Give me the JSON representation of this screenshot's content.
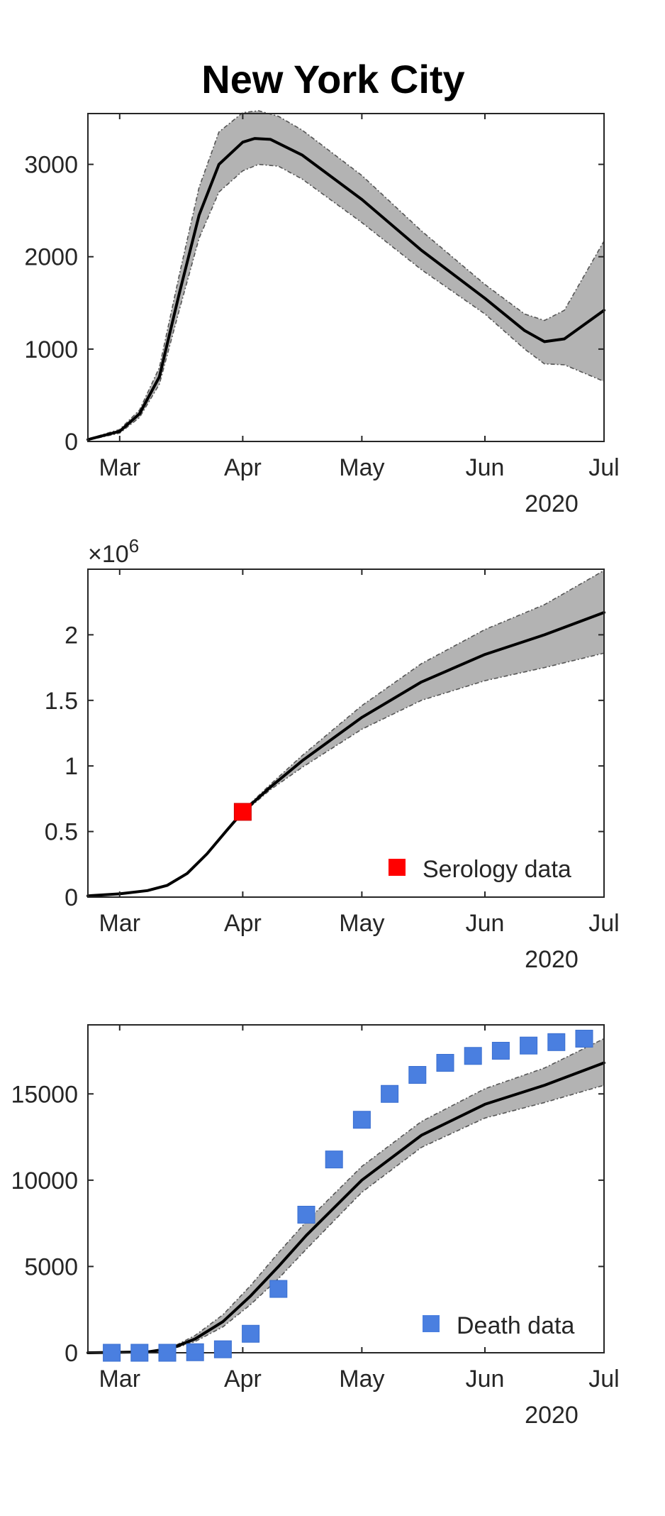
{
  "figure_title": "New York City",
  "colors": {
    "band": "#b3b3b3",
    "line": "#000000",
    "serology_marker": "#ff0000",
    "death_marker": "#4a7fe0",
    "axes": "#262626"
  },
  "chart_data": [
    {
      "type": "line",
      "title": "New York City",
      "x_type": "date",
      "xlim": [
        "2020-02-22",
        "2020-07-01"
      ],
      "ylim": [
        0,
        3550
      ],
      "xticks": [
        "2020-03-01",
        "2020-04-01",
        "2020-05-01",
        "2020-06-01",
        "2020-07-01"
      ],
      "xtick_labels": [
        "Mar",
        "Apr",
        "May",
        "Jun",
        "Jul"
      ],
      "xaxis_year": "2020",
      "yticks": [
        0,
        1000,
        2000,
        3000
      ],
      "ytick_labels": [
        "0",
        "1000",
        "2000",
        "3000"
      ],
      "grid": false,
      "series": [
        {
          "role": "median",
          "x": [
            "2020-02-22",
            "2020-03-01",
            "2020-03-06",
            "2020-03-11",
            "2020-03-16",
            "2020-03-21",
            "2020-03-26",
            "2020-04-01",
            "2020-04-04",
            "2020-04-08",
            "2020-04-16",
            "2020-05-01",
            "2020-05-16",
            "2020-06-01",
            "2020-06-11",
            "2020-06-16",
            "2020-06-21",
            "2020-07-01"
          ],
          "y": [
            20,
            110,
            300,
            700,
            1600,
            2450,
            3000,
            3240,
            3280,
            3270,
            3100,
            2620,
            2070,
            1550,
            1200,
            1080,
            1110,
            1420
          ]
        },
        {
          "role": "band_upper",
          "x": [
            "2020-02-22",
            "2020-03-01",
            "2020-03-06",
            "2020-03-11",
            "2020-03-16",
            "2020-03-21",
            "2020-03-26",
            "2020-04-01",
            "2020-04-05",
            "2020-04-10",
            "2020-04-16",
            "2020-05-01",
            "2020-05-16",
            "2020-06-01",
            "2020-06-11",
            "2020-06-16",
            "2020-06-21",
            "2020-07-01"
          ],
          "y": [
            25,
            130,
            340,
            800,
            1800,
            2750,
            3350,
            3560,
            3580,
            3520,
            3370,
            2880,
            2280,
            1700,
            1380,
            1310,
            1420,
            2170
          ]
        },
        {
          "role": "band_lower",
          "x": [
            "2020-02-22",
            "2020-03-01",
            "2020-03-06",
            "2020-03-11",
            "2020-03-16",
            "2020-03-21",
            "2020-03-26",
            "2020-04-01",
            "2020-04-05",
            "2020-04-10",
            "2020-04-16",
            "2020-05-01",
            "2020-05-16",
            "2020-06-01",
            "2020-06-11",
            "2020-06-16",
            "2020-06-21",
            "2020-07-01"
          ],
          "y": [
            15,
            90,
            260,
            620,
            1420,
            2200,
            2700,
            2930,
            3000,
            2980,
            2840,
            2370,
            1860,
            1380,
            1000,
            840,
            830,
            650
          ]
        }
      ]
    },
    {
      "type": "line",
      "x_type": "date",
      "xlim": [
        "2020-02-22",
        "2020-07-01"
      ],
      "ylim": [
        0,
        2.5
      ],
      "y_multiplier": "×10",
      "y_multiplier_exponent": "6",
      "xticks": [
        "2020-03-01",
        "2020-04-01",
        "2020-05-01",
        "2020-06-01",
        "2020-07-01"
      ],
      "xtick_labels": [
        "Mar",
        "Apr",
        "May",
        "Jun",
        "Jul"
      ],
      "xaxis_year": "2020",
      "yticks": [
        0,
        0.5,
        1,
        1.5,
        2
      ],
      "ytick_labels": [
        "0",
        "0.5",
        "1",
        "1.5",
        "2"
      ],
      "grid": false,
      "legend_position": "bottom-right",
      "series": [
        {
          "role": "median",
          "x": [
            "2020-02-22",
            "2020-03-01",
            "2020-03-08",
            "2020-03-13",
            "2020-03-18",
            "2020-03-23",
            "2020-03-28",
            "2020-04-01",
            "2020-04-08",
            "2020-04-16",
            "2020-05-01",
            "2020-05-16",
            "2020-06-01",
            "2020-06-16",
            "2020-07-01"
          ],
          "y": [
            0.01,
            0.025,
            0.05,
            0.09,
            0.18,
            0.33,
            0.51,
            0.65,
            0.84,
            1.04,
            1.37,
            1.64,
            1.85,
            2.0,
            2.17
          ]
        },
        {
          "role": "band_upper",
          "x": [
            "2020-04-01",
            "2020-04-08",
            "2020-04-16",
            "2020-05-01",
            "2020-05-16",
            "2020-06-01",
            "2020-06-16",
            "2020-07-01"
          ],
          "y": [
            0.66,
            0.86,
            1.08,
            1.46,
            1.78,
            2.04,
            2.23,
            2.49
          ]
        },
        {
          "role": "band_lower",
          "x": [
            "2020-04-01",
            "2020-04-08",
            "2020-04-16",
            "2020-05-01",
            "2020-05-16",
            "2020-06-01",
            "2020-06-16",
            "2020-07-01"
          ],
          "y": [
            0.64,
            0.82,
            0.99,
            1.28,
            1.5,
            1.65,
            1.75,
            1.86
          ]
        },
        {
          "name": "Serology data",
          "role": "marker",
          "marker": "square",
          "x": [
            "2020-04-01"
          ],
          "y": [
            0.65
          ]
        }
      ]
    },
    {
      "type": "line",
      "x_type": "date",
      "xlim": [
        "2020-02-22",
        "2020-07-01"
      ],
      "ylim": [
        0,
        19000
      ],
      "xticks": [
        "2020-03-01",
        "2020-04-01",
        "2020-05-01",
        "2020-06-01",
        "2020-07-01"
      ],
      "xtick_labels": [
        "Mar",
        "Apr",
        "May",
        "Jun",
        "Jul"
      ],
      "xaxis_year": "2020",
      "yticks": [
        0,
        5000,
        10000,
        15000
      ],
      "ytick_labels": [
        "0",
        "5000",
        "10000",
        "15000"
      ],
      "grid": false,
      "legend_position": "bottom-right",
      "series": [
        {
          "role": "median",
          "x": [
            "2020-02-22",
            "2020-03-08",
            "2020-03-14",
            "2020-03-20",
            "2020-03-27",
            "2020-04-03",
            "2020-04-10",
            "2020-04-17",
            "2020-05-01",
            "2020-05-16",
            "2020-06-01",
            "2020-06-16",
            "2020-07-01"
          ],
          "y": [
            0,
            50,
            250,
            800,
            1800,
            3300,
            5000,
            6800,
            10000,
            12600,
            14400,
            15500,
            16800
          ]
        },
        {
          "role": "band_upper",
          "x": [
            "2020-02-22",
            "2020-03-08",
            "2020-03-14",
            "2020-03-20",
            "2020-03-27",
            "2020-04-03",
            "2020-04-10",
            "2020-04-17",
            "2020-05-01",
            "2020-05-16",
            "2020-06-01",
            "2020-06-16",
            "2020-07-01"
          ],
          "y": [
            0,
            60,
            300,
            1000,
            2200,
            3900,
            5800,
            7600,
            10800,
            13400,
            15300,
            16500,
            18200
          ]
        },
        {
          "role": "band_lower",
          "x": [
            "2020-02-22",
            "2020-03-08",
            "2020-03-14",
            "2020-03-20",
            "2020-03-27",
            "2020-04-03",
            "2020-04-10",
            "2020-04-17",
            "2020-05-01",
            "2020-05-16",
            "2020-06-01",
            "2020-06-16",
            "2020-07-01"
          ],
          "y": [
            0,
            40,
            200,
            650,
            1500,
            2800,
            4300,
            6000,
            9300,
            11900,
            13600,
            14500,
            15500
          ]
        },
        {
          "name": "Death data",
          "role": "marker",
          "marker": "square",
          "x": [
            "2020-02-28",
            "2020-03-06",
            "2020-03-13",
            "2020-03-20",
            "2020-03-27",
            "2020-04-03",
            "2020-04-10",
            "2020-04-17",
            "2020-04-24",
            "2020-05-01",
            "2020-05-08",
            "2020-05-15",
            "2020-05-22",
            "2020-05-29",
            "2020-06-05",
            "2020-06-12",
            "2020-06-19",
            "2020-06-26"
          ],
          "y": [
            0,
            0,
            0,
            30,
            200,
            1100,
            3700,
            8000,
            11200,
            13500,
            15000,
            16100,
            16800,
            17200,
            17500,
            17800,
            18000,
            18200
          ]
        }
      ]
    }
  ]
}
